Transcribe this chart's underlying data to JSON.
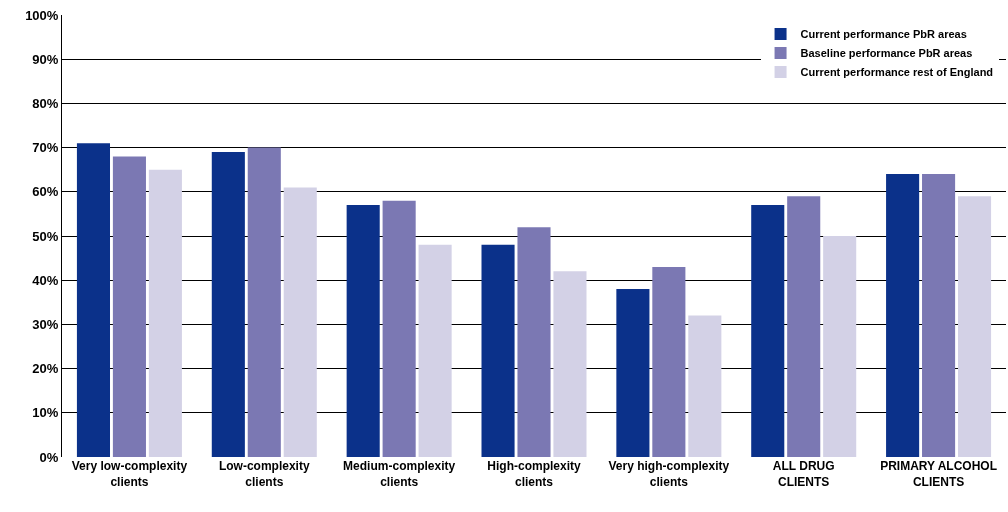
{
  "chart_data": {
    "type": "bar",
    "categories": [
      "Very low-complexity clients",
      "Low-complexity clients",
      "Medium-complexity clients",
      "High-complexity clients",
      "Very high-complexity clients",
      "ALL DRUG CLIENTS",
      "PRIMARY ALCOHOL CLIENTS"
    ],
    "series": [
      {
        "name": "Current performance PbR areas",
        "color": "#0b318a",
        "values": [
          71,
          69,
          57,
          48,
          38,
          57,
          64
        ]
      },
      {
        "name": "Baseline performance PbR areas",
        "color": "#7b78b3",
        "values": [
          68,
          70,
          58,
          52,
          43,
          59,
          64
        ]
      },
      {
        "name": "Current performance rest of England",
        "color": "#d3d1e6",
        "values": [
          65,
          61,
          48,
          42,
          32,
          50,
          59
        ]
      }
    ],
    "ylim": [
      0,
      100
    ],
    "yticks": [
      {
        "value": 0,
        "label": "0%"
      },
      {
        "value": 10,
        "label": "10%"
      },
      {
        "value": 20,
        "label": "20%"
      },
      {
        "value": 30,
        "label": "30%"
      },
      {
        "value": 40,
        "label": "40%"
      },
      {
        "value": 50,
        "label": "50%"
      },
      {
        "value": 60,
        "label": "60%"
      },
      {
        "value": 70,
        "label": "70%"
      },
      {
        "value": 80,
        "label": "80%"
      },
      {
        "value": 90,
        "label": "90%"
      },
      {
        "value": 100,
        "label": "100%"
      }
    ],
    "grid": "y",
    "legend": "top right"
  }
}
